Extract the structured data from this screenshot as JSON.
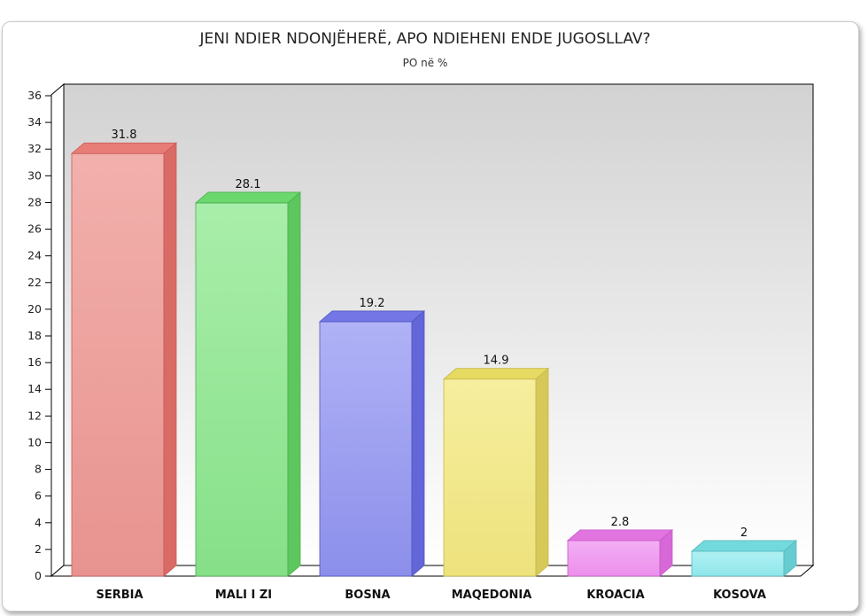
{
  "chart_data": {
    "type": "bar",
    "title": "JENI NDIER NDONJËHERË, APO NDIEHENI ENDE JUGOSLLAV?",
    "subtitle": "PO në %",
    "xlabel": "",
    "ylabel": "",
    "ylim": [
      0,
      36
    ],
    "yticks": [
      0,
      2,
      4,
      6,
      8,
      10,
      12,
      14,
      16,
      18,
      20,
      22,
      24,
      26,
      28,
      30,
      32,
      34,
      36
    ],
    "grid": false,
    "categories": [
      "SERBIA",
      "MALI I ZI",
      "BOSNA",
      "MAQEDONIA",
      "KROACIA",
      "KOSOVA"
    ],
    "values": [
      31.8,
      28.1,
      19.2,
      14.9,
      2.8,
      2
    ],
    "value_labels": [
      "31.8",
      "28.1",
      "19.2",
      "14.9",
      "2.8",
      "2"
    ],
    "colors": [
      {
        "front": "#e8938f",
        "frontLight": "#f2b0ac",
        "side": "#d96b66",
        "top": "#e87c77",
        "edge": "#c75a55"
      },
      {
        "front": "#86e088",
        "frontLight": "#a9eeaa",
        "side": "#5cc75e",
        "top": "#6ad86c",
        "edge": "#4cae4e"
      },
      {
        "front": "#8c8fea",
        "frontLight": "#b0b2f6",
        "side": "#6266d6",
        "top": "#7376e4",
        "edge": "#5256c2"
      },
      {
        "front": "#ede27c",
        "frontLight": "#f6ee9e",
        "side": "#d6c859",
        "top": "#e6da62",
        "edge": "#c5b84a"
      },
      {
        "front": "#ec8fec",
        "frontLight": "#f4aef4",
        "side": "#d768d7",
        "top": "#e274e2",
        "edge": "#c55ac5"
      },
      {
        "front": "#8fe6ea",
        "frontLight": "#b0f1f3",
        "side": "#66ccd0",
        "top": "#72dadd",
        "edge": "#55b8bc"
      }
    ]
  }
}
